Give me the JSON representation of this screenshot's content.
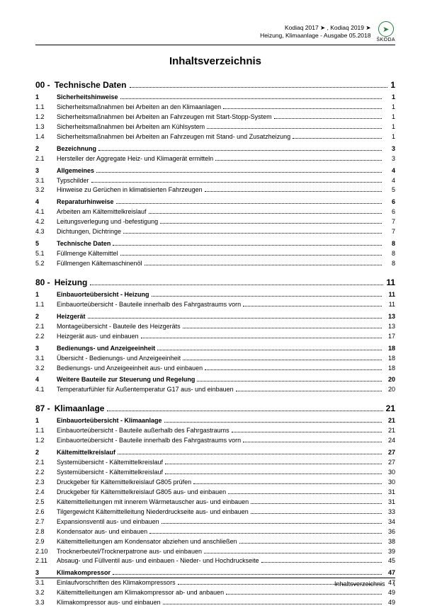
{
  "header": {
    "line1": "Kodiaq 2017 ➤ , Kodiaq 2019 ➤",
    "line2": "Heizung, Klimaanlage - Ausgabe 05.2018",
    "brand": "ŠKODA"
  },
  "title": "Inhaltsverzeichnis",
  "sections": [
    {
      "num": "00 -",
      "label": "Technische Daten",
      "page": "1",
      "rows": [
        {
          "num": "1",
          "label": "Sicherheitshinweise",
          "page": "1",
          "bold": true
        },
        {
          "num": "1.1",
          "label": "Sicherheitsmaßnahmen bei Arbeiten an den Klimaanlagen",
          "page": "1"
        },
        {
          "num": "1.2",
          "label": "Sicherheitsmaßnahmen bei Arbeiten an Fahrzeugen mit Start-Stopp-System",
          "page": "1"
        },
        {
          "num": "1.3",
          "label": "Sicherheitsmaßnahmen bei Arbeiten am Kühlsystem",
          "page": "1"
        },
        {
          "num": "1.4",
          "label": "Sicherheitsmaßnahmen bei Arbeiten an Fahrzeugen mit Stand- und Zusatzheizung",
          "page": "1"
        },
        {
          "gap": true
        },
        {
          "num": "2",
          "label": "Bezeichnung",
          "page": "3",
          "bold": true
        },
        {
          "num": "2.1",
          "label": "Hersteller der Aggregate Heiz- und Klimagerät ermitteln",
          "page": "3"
        },
        {
          "gap": true
        },
        {
          "num": "3",
          "label": "Allgemeines",
          "page": "4",
          "bold": true
        },
        {
          "num": "3.1",
          "label": "Typschilder",
          "page": "4"
        },
        {
          "num": "3.2",
          "label": "Hinweise zu Gerüchen in klimatisierten Fahrzeugen",
          "page": "5"
        },
        {
          "gap": true
        },
        {
          "num": "4",
          "label": "Reparaturhinweise",
          "page": "6",
          "bold": true
        },
        {
          "num": "4.1",
          "label": "Arbeiten am Kältemittelkreislauf",
          "page": "6"
        },
        {
          "num": "4.2",
          "label": "Leitungsverlegung und -befestigung",
          "page": "7"
        },
        {
          "num": "4.3",
          "label": "Dichtungen, Dichtringe",
          "page": "7"
        },
        {
          "gap": true
        },
        {
          "num": "5",
          "label": "Technische Daten",
          "page": "8",
          "bold": true
        },
        {
          "num": "5.1",
          "label": "Füllmenge Kältemittel",
          "page": "8"
        },
        {
          "num": "5.2",
          "label": "Füllmengen Kältemaschinenöl",
          "page": "8"
        }
      ]
    },
    {
      "num": "80 -",
      "label": "Heizung",
      "page": "11",
      "rows": [
        {
          "num": "1",
          "label": "Einbauorteübersicht - Heizung",
          "page": "11",
          "bold": true
        },
        {
          "num": "1.1",
          "label": "Einbauorteübersicht - Bauteile innerhalb des Fahrgastraums vorn",
          "page": "11"
        },
        {
          "gap": true
        },
        {
          "num": "2",
          "label": "Heizgerät",
          "page": "13",
          "bold": true
        },
        {
          "num": "2.1",
          "label": "Montageübersicht - Bauteile des Heizgeräts",
          "page": "13"
        },
        {
          "num": "2.2",
          "label": "Heizgerät aus- und einbauen",
          "page": "17"
        },
        {
          "gap": true
        },
        {
          "num": "3",
          "label": "Bedienungs- und Anzeigeeinheit",
          "page": "18",
          "bold": true
        },
        {
          "num": "3.1",
          "label": "Übersicht - Bedienungs- und Anzeigeeinheit",
          "page": "18"
        },
        {
          "num": "3.2",
          "label": "Bedienungs- und Anzeigeeinheit aus- und einbauen",
          "page": "18"
        },
        {
          "gap": true
        },
        {
          "num": "4",
          "label": "Weitere Bauteile zur Steuerung und Regelung",
          "page": "20",
          "bold": true
        },
        {
          "num": "4.1",
          "label": "Temperaturfühler für Außentemperatur G17 aus- und einbauen",
          "page": "20"
        }
      ]
    },
    {
      "num": "87 -",
      "label": "Klimaanlage",
      "page": "21",
      "rows": [
        {
          "num": "1",
          "label": "Einbauorteübersicht - Klimaanlage",
          "page": "21",
          "bold": true
        },
        {
          "num": "1.1",
          "label": "Einbauorteübersicht - Bauteile außerhalb des Fahrgastraums",
          "page": "21"
        },
        {
          "num": "1.2",
          "label": "Einbauorteübersicht - Bauteile innerhalb des Fahrgastraums vorn",
          "page": "24"
        },
        {
          "gap": true
        },
        {
          "num": "2",
          "label": "Kältemittelkreislauf",
          "page": "27",
          "bold": true
        },
        {
          "num": "2.1",
          "label": "Systemübersicht - Kältemittelkreislauf",
          "page": "27"
        },
        {
          "num": "2.2",
          "label": "Systemübersicht - Kältemittelkreislauf",
          "page": "30"
        },
        {
          "num": "2.3",
          "label": "Druckgeber für Kältemittelkreislauf G805 prüfen",
          "page": "30"
        },
        {
          "num": "2.4",
          "label": "Druckgeber für Kältemittelkreislauf G805 aus- und einbauen",
          "page": "31"
        },
        {
          "num": "2.5",
          "label": "Kältemittelleitungen mit innerem Wärmetauscher aus- und einbauen",
          "page": "31"
        },
        {
          "num": "2.6",
          "label": "Tilgergewicht Kältemittelleitung Niederdruckseite aus- und einbauen",
          "page": "33"
        },
        {
          "num": "2.7",
          "label": "Expansionsventil aus- und einbauen",
          "page": "34"
        },
        {
          "num": "2.8",
          "label": "Kondensator aus- und einbauen",
          "page": "36"
        },
        {
          "num": "2.9",
          "label": "Kältemittelleitungen am Kondensator abziehen und anschließen",
          "page": "38"
        },
        {
          "num": "2.10",
          "label": "Trocknerbeutel/Trocknerpatrone aus- und einbauen",
          "page": "39"
        },
        {
          "num": "2.11",
          "label": "Absaug- und Füllventil aus- und einbauen - Nieder- und Hochdruckseite",
          "page": "45"
        },
        {
          "gap": true
        },
        {
          "num": "3",
          "label": "Klimakompressor",
          "page": "47",
          "bold": true
        },
        {
          "num": "3.1",
          "label": "Einlaufvorschriften des Klimakompressors",
          "page": "47"
        },
        {
          "num": "3.2",
          "label": "Kältemittelleitungen am Klimakompressor ab- und anbauen",
          "page": "49"
        },
        {
          "num": "3.3",
          "label": "Klimakompressor aus- und einbauen",
          "page": "49"
        }
      ]
    }
  ],
  "footer": {
    "label": "Inhaltsverzeichnis",
    "page": "i"
  }
}
